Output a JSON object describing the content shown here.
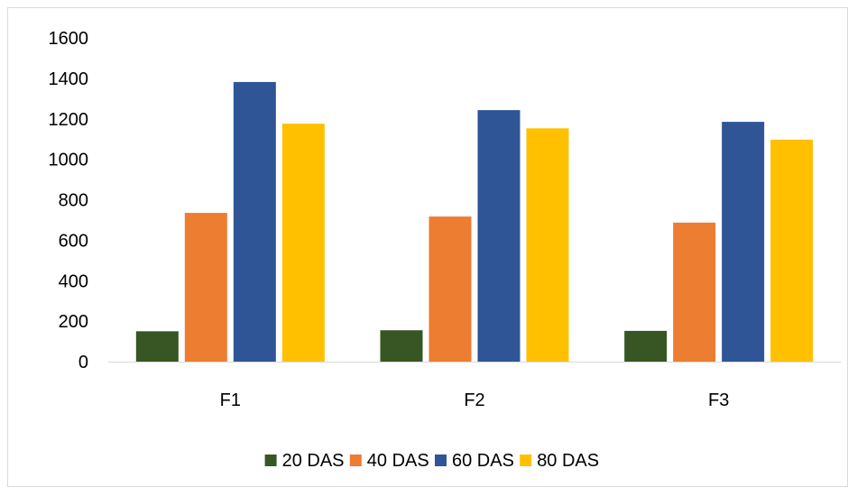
{
  "chart_data": {
    "type": "bar",
    "title": "",
    "xlabel": "",
    "ylabel": "",
    "ylim": [
      0,
      1600
    ],
    "yticks": [
      0,
      200,
      400,
      600,
      800,
      1000,
      1200,
      1400,
      1600
    ],
    "yticklabels": [
      "0",
      "200",
      "400",
      "600",
      "800",
      "1000",
      "1200",
      "1400",
      "1600"
    ],
    "grid": false,
    "legend_position": "bottom",
    "categories": [
      "F1",
      "F2",
      "F3"
    ],
    "series": [
      {
        "name": "20 DAS",
        "color": "#375623",
        "values": [
          150,
          155,
          152
        ]
      },
      {
        "name": "40 DAS",
        "color": "#ED7D31",
        "values": [
          735,
          717,
          687
        ]
      },
      {
        "name": "60 DAS",
        "color": "#2F5597",
        "values": [
          1382,
          1243,
          1185
        ]
      },
      {
        "name": "80 DAS",
        "color": "#FFC000",
        "values": [
          1176,
          1153,
          1097
        ]
      }
    ]
  }
}
